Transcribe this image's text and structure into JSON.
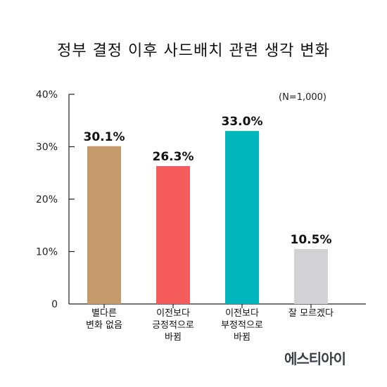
{
  "chart_data": {
    "type": "bar",
    "title": "정부 결정 이후 사드배치 관련 생각 변화",
    "note": "(N=1,000)",
    "categories": [
      [
        "별다른",
        "변화 없음"
      ],
      [
        "이전보다",
        "긍정적으로",
        "바뀜"
      ],
      [
        "이전보다",
        "부정적으로",
        "바뀜"
      ],
      [
        "잘 모르겠다"
      ]
    ],
    "values": [
      30.1,
      26.3,
      33.0,
      10.5
    ],
    "value_labels": [
      "30.1%",
      "26.3%",
      "33.0%",
      "10.5%"
    ],
    "colors": [
      "#c49a6c",
      "#f45b5b",
      "#00b6bd",
      "#d2d2d4"
    ],
    "ylim": [
      0,
      40
    ],
    "yticks": [
      0,
      10,
      20,
      30,
      40
    ],
    "ytick_labels": [
      "0",
      "10%",
      "20%",
      "30%",
      "40%"
    ],
    "xlabel": "",
    "ylabel": "",
    "grid": false,
    "legend": "none"
  },
  "brand": {
    "name": "에스티아이"
  }
}
